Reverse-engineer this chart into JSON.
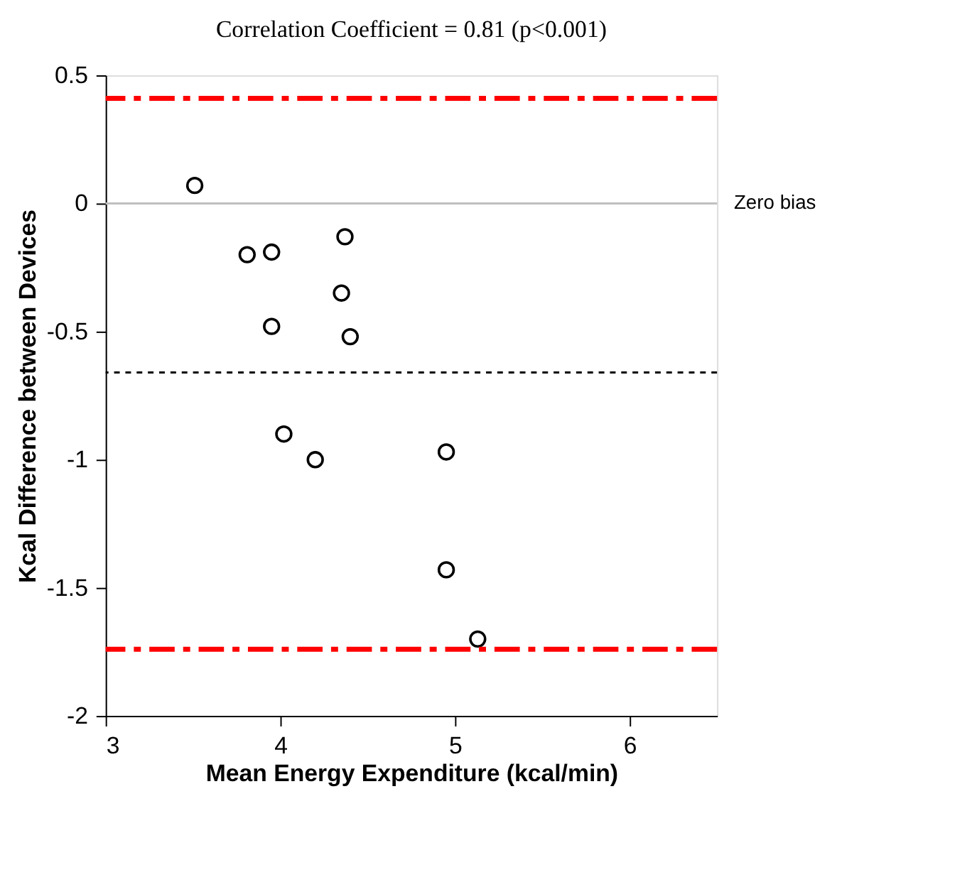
{
  "chart_data": {
    "type": "scatter",
    "title": "Correlation Coefficient = 0.81 (p<0.001)",
    "xlabel": "Mean Energy Expenditure (kcal/min)",
    "ylabel": "Kcal Difference between Devices",
    "x": [
      3.51,
      3.81,
      3.95,
      4.37,
      4.35,
      3.95,
      4.4,
      4.02,
      4.2,
      4.95,
      4.95,
      5.13
    ],
    "values": [
      0.07,
      -0.2,
      -0.19,
      -0.13,
      -0.35,
      -0.48,
      -0.52,
      -0.9,
      -1.0,
      -0.97,
      -1.43,
      -1.7
    ],
    "color": "#000000",
    "marker": "circle",
    "xlim": [
      3,
      6.5
    ],
    "ylim": [
      -2,
      0.5
    ],
    "xticks": [
      3,
      4,
      5,
      6
    ],
    "yticks": [
      -2,
      -1.5,
      -1,
      -0.5,
      0,
      0.5
    ],
    "grid": false,
    "ref_lines": [
      {
        "axis": "y",
        "value": 0,
        "label": "Zero bias",
        "color": "#bfbfbf",
        "line_style": "solid"
      },
      {
        "axis": "y",
        "value": 0.41,
        "color": "#ff0000",
        "line_style": "dashdot"
      },
      {
        "axis": "y",
        "value": -0.66,
        "color": "#000000",
        "line_style": "dotted"
      },
      {
        "axis": "y",
        "value": -1.74,
        "color": "#ff0000",
        "line_style": "dashdot"
      }
    ]
  }
}
